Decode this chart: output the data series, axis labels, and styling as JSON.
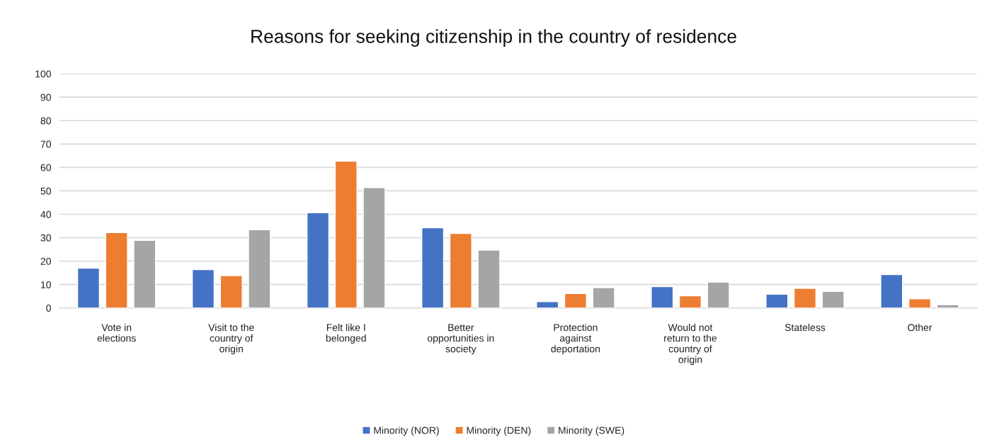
{
  "chart_data": {
    "type": "bar",
    "title": "Reasons for seeking citizenship in the country of residence",
    "categories": [
      "Vote in elections",
      "Visit to the country of origin",
      "Felt like I belonged",
      "Better opportunities in society",
      "Protection against deportation",
      "Would not return to the country of origin",
      "Stateless",
      "Other"
    ],
    "series": [
      {
        "name": "Minority (NOR)",
        "color": "#4472c4",
        "values": [
          17,
          16.4,
          40.7,
          34.2,
          2.7,
          9.1,
          5.9,
          14.3
        ]
      },
      {
        "name": "Minority (DEN)",
        "color": "#ed7d31",
        "values": [
          32.2,
          13.8,
          62.7,
          31.8,
          6.2,
          5.2,
          8.4,
          3.9
        ]
      },
      {
        "name": "Minority (SWE)",
        "color": "#a5a5a5",
        "values": [
          28.9,
          33.4,
          51.4,
          24.7,
          8.7,
          11.0,
          7.1,
          1.4
        ]
      }
    ],
    "ylim": [
      0,
      100
    ],
    "yticks": [
      0,
      10,
      20,
      30,
      40,
      50,
      60,
      70,
      80,
      90,
      100
    ],
    "grid": "y",
    "legend": "bottom"
  }
}
